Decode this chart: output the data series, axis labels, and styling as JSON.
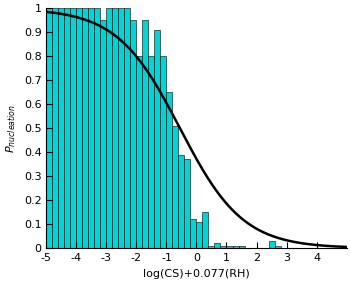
{
  "xlabel": "log(CS)+0.077(RH)",
  "ylabel": "P_nucleation",
  "xlim": [
    -5,
    5
  ],
  "ylim": [
    0,
    1.0
  ],
  "xticks": [
    -5,
    -4,
    -3,
    -2,
    -1,
    0,
    1,
    2,
    3,
    4
  ],
  "yticks": [
    0,
    0.1,
    0.2,
    0.3,
    0.4,
    0.5,
    0.6,
    0.7,
    0.8,
    0.9,
    1.0
  ],
  "bar_color": "#00D4D4",
  "bar_edge_color": "#000000",
  "bar_edge_width": 0.4,
  "bar_bins": [
    [
      -5.0,
      1.0
    ],
    [
      -4.8,
      1.0
    ],
    [
      -4.6,
      1.0
    ],
    [
      -4.4,
      1.0
    ],
    [
      -4.2,
      1.0
    ],
    [
      -4.0,
      1.0
    ],
    [
      -3.8,
      1.0
    ],
    [
      -3.6,
      1.0
    ],
    [
      -3.4,
      1.0
    ],
    [
      -3.2,
      0.95
    ],
    [
      -3.0,
      1.0
    ],
    [
      -2.8,
      1.0
    ],
    [
      -2.6,
      1.0
    ],
    [
      -2.4,
      1.0
    ],
    [
      -2.2,
      0.95
    ],
    [
      -2.0,
      0.8
    ],
    [
      -1.8,
      0.95
    ],
    [
      -1.6,
      0.8
    ],
    [
      -1.4,
      0.91
    ],
    [
      -1.2,
      0.8
    ],
    [
      -1.0,
      0.65
    ],
    [
      -0.8,
      0.51
    ],
    [
      -0.6,
      0.39
    ],
    [
      -0.4,
      0.37
    ],
    [
      -0.2,
      0.12
    ],
    [
      0.0,
      0.11
    ],
    [
      0.2,
      0.15
    ],
    [
      0.4,
      0.01
    ],
    [
      0.6,
      0.02
    ],
    [
      0.8,
      0.01
    ],
    [
      1.0,
      0.01
    ],
    [
      1.2,
      0.01
    ],
    [
      1.4,
      0.01
    ],
    [
      2.4,
      0.03
    ],
    [
      2.6,
      0.01
    ]
  ],
  "bar_width": 0.2,
  "sigmoid_mean": -0.55,
  "sigmoid_scale": 1.05,
  "line_color": "#000000",
  "line_width": 1.8,
  "background_color": "#ffffff",
  "figsize": [
    3.51,
    2.83
  ],
  "dpi": 100
}
